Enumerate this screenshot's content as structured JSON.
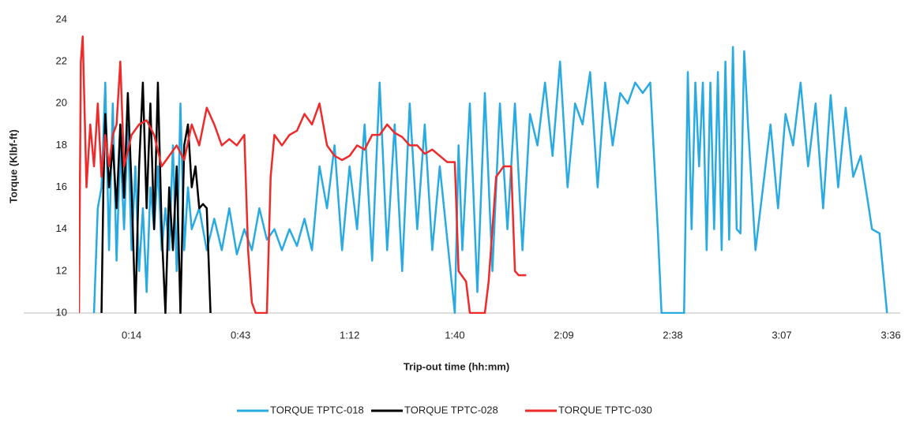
{
  "chart_data": {
    "type": "line",
    "xlabel": "Trip-out time (hh:mm)",
    "ylabel": "Torque (Klbf-ft)",
    "xlim": [
      0,
      216
    ],
    "xticks": [
      {
        "value": 14,
        "label": "0:14"
      },
      {
        "value": 43,
        "label": "0:43"
      },
      {
        "value": 72,
        "label": "1:12"
      },
      {
        "value": 100,
        "label": "1:40"
      },
      {
        "value": 129,
        "label": "2:09"
      },
      {
        "value": 158,
        "label": "2:38"
      },
      {
        "value": 187,
        "label": "3:07"
      },
      {
        "value": 216,
        "label": "3:36"
      }
    ],
    "ylim": [
      10,
      24
    ],
    "yticks": [
      10,
      12,
      14,
      16,
      18,
      20,
      22,
      24
    ],
    "grid": false,
    "legend": "bottom",
    "series": [
      {
        "name": "TORQUE TPTC-018",
        "color": "#29abe2",
        "x": [
          4,
          5,
          6,
          7,
          8,
          9,
          10,
          11,
          12,
          13,
          14,
          15,
          16,
          17,
          18,
          19,
          20,
          21,
          22,
          23,
          24,
          25,
          26,
          27,
          28,
          29,
          30,
          32,
          34,
          36,
          38,
          40,
          42,
          44,
          46,
          48,
          50,
          52,
          54,
          56,
          58,
          60,
          62,
          64,
          66,
          68,
          70,
          72,
          74,
          76,
          78,
          80,
          82,
          84,
          86,
          88,
          90,
          92,
          94,
          96,
          98,
          100,
          101,
          102,
          104,
          106,
          108,
          110,
          112,
          114,
          116,
          118,
          120,
          122,
          124,
          126,
          128,
          130,
          132,
          134,
          136,
          138,
          140,
          142,
          144,
          146,
          148,
          150,
          152,
          154,
          155,
          161,
          162,
          163,
          164,
          165,
          166,
          167,
          168,
          169,
          170,
          171,
          172,
          173,
          174,
          175,
          176,
          177,
          178,
          180,
          182,
          184,
          186,
          188,
          190,
          192,
          194,
          196,
          198,
          200,
          202,
          204,
          206,
          208,
          210,
          211,
          213,
          215
        ],
        "values": [
          10,
          15,
          16,
          21,
          13,
          20,
          12.5,
          18,
          14,
          19,
          13,
          17,
          12,
          15,
          11,
          16,
          14,
          17,
          13,
          15,
          13,
          18,
          12,
          20,
          13,
          16,
          14,
          15,
          13,
          14.5,
          13,
          15,
          12.8,
          14,
          13,
          15,
          13.5,
          14,
          13,
          14,
          13.2,
          14.5,
          13,
          17,
          15,
          18,
          13,
          17,
          14,
          19,
          12.5,
          21,
          13,
          19,
          12,
          20,
          14,
          19,
          13,
          17,
          13.5,
          10,
          18,
          13,
          20,
          11,
          20.5,
          12,
          20,
          14,
          20,
          13,
          19.5,
          18,
          21,
          17.5,
          22,
          16,
          20,
          19,
          21.5,
          16,
          21,
          18,
          20.5,
          20,
          21,
          20.5,
          21,
          14,
          10,
          10,
          21.5,
          14,
          21,
          17,
          21,
          13,
          21,
          14,
          21.5,
          13,
          22,
          13.5,
          22.7,
          14,
          13.8,
          22.5,
          19,
          13,
          16,
          19,
          15,
          19.5,
          18,
          21,
          17,
          20,
          15,
          20.4,
          16,
          19.8,
          16.5,
          17.5,
          15.2,
          14,
          13.8,
          10
        ]
      },
      {
        "name": "TORQUE TPTC-028",
        "color": "#000000",
        "x": [
          6,
          6.5,
          7,
          8,
          9,
          10,
          11,
          12,
          13,
          14,
          15,
          16,
          17,
          18,
          19,
          20,
          21,
          22,
          23,
          24,
          25,
          26,
          27,
          28,
          29,
          30,
          31,
          32,
          33,
          34,
          35
        ],
        "values": [
          10,
          16,
          19.5,
          16,
          18,
          15,
          19,
          15.5,
          20.5,
          16,
          10,
          17,
          21,
          15,
          20,
          14,
          21,
          14,
          10,
          16,
          13,
          17,
          10,
          18,
          19,
          16,
          17,
          15,
          15.2,
          15,
          10
        ]
      },
      {
        "name": "TORQUE TPTC-030",
        "color": "#ee2a2a",
        "x": [
          0,
          0.5,
          1,
          2,
          3,
          4,
          5,
          6,
          7,
          8,
          9,
          10,
          11,
          12,
          14,
          16,
          18,
          20,
          22,
          24,
          26,
          28,
          30,
          32,
          34,
          36,
          38,
          40,
          42,
          44,
          45,
          46,
          47,
          49,
          50,
          51,
          52,
          54,
          56,
          58,
          60,
          62,
          64,
          66,
          68,
          70,
          72,
          74,
          76,
          78,
          80,
          82,
          84,
          86,
          88,
          90,
          92,
          94,
          96,
          98,
          100,
          101,
          103,
          104,
          108,
          109,
          111,
          113,
          115,
          116,
          117,
          119
        ],
        "values": [
          10,
          22,
          23.2,
          16,
          19,
          17,
          20,
          16.5,
          18.5,
          17,
          18.5,
          19,
          22,
          17,
          18.5,
          19,
          19.2,
          18.5,
          17,
          17.5,
          18,
          17.3,
          19,
          18,
          19.8,
          19,
          18,
          18.3,
          18,
          18.5,
          13,
          10.5,
          10,
          10,
          10,
          16.5,
          18.5,
          18,
          18.5,
          18.7,
          19.5,
          19,
          20,
          18,
          17.5,
          17.3,
          17.5,
          18,
          17.8,
          18.5,
          18.5,
          19,
          18.6,
          18.4,
          18,
          18,
          17.6,
          17.8,
          17.5,
          17.2,
          17.2,
          12,
          11.5,
          10,
          10,
          11.5,
          16.5,
          17,
          17,
          12,
          11.8,
          11.8
        ]
      }
    ]
  }
}
